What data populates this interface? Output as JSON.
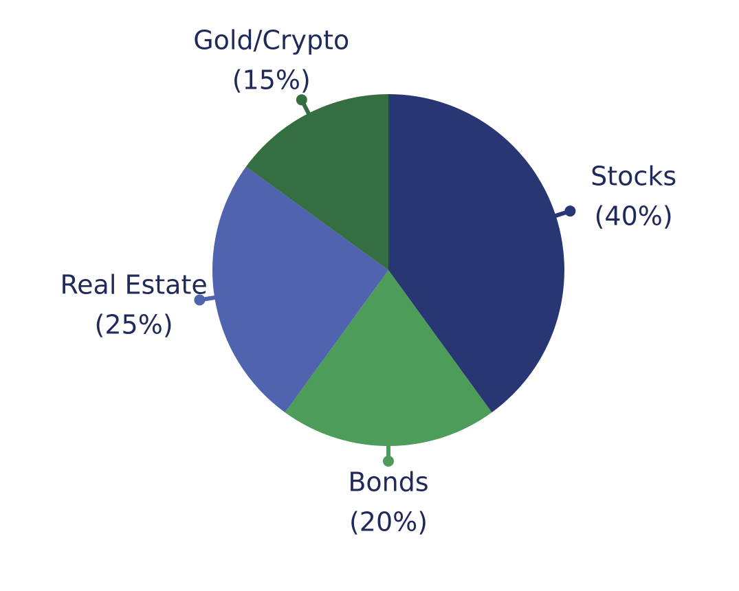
{
  "chart_data": {
    "type": "pie",
    "categories": [
      "Stocks",
      "Bonds",
      "Real Estate",
      "Gold/Crypto"
    ],
    "values": [
      40,
      20,
      25,
      15
    ],
    "value_labels": [
      "(40%)",
      "(20%)",
      "(25%)",
      "(15%)"
    ],
    "colors": [
      "#283673",
      "#4e9c5a",
      "#4f63ae",
      "#356e40"
    ]
  }
}
